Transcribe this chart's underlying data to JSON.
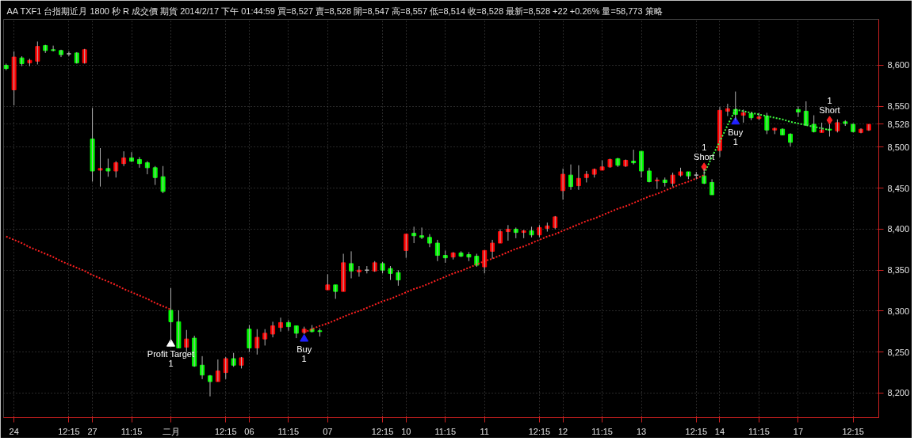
{
  "chart_data": {
    "type": "candlestick",
    "title": "AA  TXF1  台指期近月  1800 秒  R  成交價  期貨  2014/2/17 下午 01:44:59  買=8,527  賣=8,528  開=8,547  高=8,557  低=8,514  收=8,528  最新=8,528  +22  +0.26%  量=58,773  策略",
    "categories": [
      null,
      "24",
      null,
      null,
      null,
      null,
      null,
      null,
      "12:15",
      null,
      null,
      "27",
      null,
      null,
      null,
      null,
      "11:15",
      null,
      null,
      null,
      null,
      "二月",
      null,
      null,
      null,
      null,
      null,
      null,
      "12:15",
      null,
      null,
      "06",
      null,
      null,
      null,
      null,
      "11:15",
      null,
      null,
      null,
      null,
      "07",
      null,
      null,
      null,
      null,
      null,
      null,
      "12:15",
      null,
      null,
      "10",
      null,
      null,
      null,
      null,
      "11:15",
      null,
      null,
      null,
      null,
      "11",
      null,
      null,
      null,
      null,
      null,
      null,
      "12:15",
      null,
      null,
      "12",
      null,
      null,
      null,
      null,
      "11:15",
      null,
      null,
      null,
      null,
      "13",
      null,
      null,
      null,
      null,
      null,
      null,
      "12:15",
      null,
      null,
      "14",
      null,
      null,
      null,
      null,
      "11:15",
      null,
      null,
      null,
      null,
      "17",
      null,
      null,
      null,
      null,
      null,
      null,
      "12:15",
      null,
      null
    ],
    "ohlc": [
      [
        8600,
        8602,
        8594,
        8596
      ],
      [
        8570,
        8617,
        8551,
        8610
      ],
      [
        8609,
        8611,
        8599,
        8602
      ],
      [
        8603,
        8608,
        8599,
        8606
      ],
      [
        8605,
        8629,
        8601,
        8623
      ],
      [
        8624,
        8625,
        8615,
        8618
      ],
      [
        8619,
        8624,
        8617,
        8618
      ],
      [
        8618,
        8619,
        8610,
        8613
      ],
      [
        8614,
        8617,
        8611,
        8614
      ],
      [
        8615,
        8616,
        8602,
        8603
      ],
      [
        8603,
        8620,
        8602,
        8619
      ],
      [
        8510,
        8548,
        8458,
        8471
      ],
      [
        8472,
        8499,
        8452,
        8474
      ],
      [
        8474,
        8486,
        8464,
        8471
      ],
      [
        8471,
        8483,
        8463,
        8481
      ],
      [
        8480,
        8495,
        8477,
        8487
      ],
      [
        8487,
        8494,
        8482,
        8483
      ],
      [
        8485,
        8488,
        8475,
        8480
      ],
      [
        8481,
        8483,
        8467,
        8475
      ],
      [
        8475,
        8477,
        8454,
        8463
      ],
      [
        8464,
        8477,
        8444,
        8446
      ],
      [
        8301,
        8328,
        8262,
        8287
      ],
      [
        8287,
        8301,
        8255,
        8255
      ],
      [
        8256,
        8277,
        8250,
        8266
      ],
      [
        8267,
        8270,
        8232,
        8233
      ],
      [
        8234,
        8245,
        8217,
        8222
      ],
      [
        8221,
        8222,
        8196,
        8214
      ],
      [
        8214,
        8241,
        8214,
        8227
      ],
      [
        8225,
        8244,
        8217,
        8242
      ],
      [
        8242,
        8249,
        8232,
        8234
      ],
      [
        8234,
        8244,
        8230,
        8243
      ],
      [
        8278,
        8283,
        8250,
        8255
      ],
      [
        8255,
        8278,
        8247,
        8268
      ],
      [
        8266,
        8278,
        8258,
        8273
      ],
      [
        8272,
        8287,
        8268,
        8282
      ],
      [
        8280,
        8292,
        8275,
        8286
      ],
      [
        8286,
        8289,
        8276,
        8281
      ],
      [
        8282,
        8282,
        8267,
        8273
      ],
      [
        8274,
        8281,
        8272,
        8278
      ],
      [
        8278,
        8283,
        8274,
        8275
      ],
      [
        8276,
        8279,
        8269,
        8275
      ],
      [
        8326,
        8345,
        8326,
        8332
      ],
      [
        8332,
        8332,
        8315,
        8324
      ],
      [
        8324,
        8370,
        8324,
        8359
      ],
      [
        8358,
        8373,
        8340,
        8349
      ],
      [
        8348,
        8355,
        8342,
        8350
      ],
      [
        8350,
        8355,
        8346,
        8350
      ],
      [
        8349,
        8361,
        8348,
        8359
      ],
      [
        8358,
        8360,
        8346,
        8350
      ],
      [
        8352,
        8355,
        8338,
        8346
      ],
      [
        8347,
        8350,
        8331,
        8338
      ],
      [
        8374,
        8394,
        8365,
        8394
      ],
      [
        8395,
        8403,
        8383,
        8392
      ],
      [
        8392,
        8402,
        8388,
        8390
      ],
      [
        8390,
        8394,
        8378,
        8383
      ],
      [
        8383,
        8387,
        8361,
        8368
      ],
      [
        8368,
        8374,
        8359,
        8365
      ],
      [
        8366,
        8372,
        8363,
        8371
      ],
      [
        8371,
        8373,
        8366,
        8367
      ],
      [
        8369,
        8372,
        8361,
        8366
      ],
      [
        8367,
        8370,
        8354,
        8356
      ],
      [
        8354,
        8374,
        8346,
        8374
      ],
      [
        8373,
        8387,
        8364,
        8383
      ],
      [
        8383,
        8400,
        8383,
        8397
      ],
      [
        8397,
        8405,
        8386,
        8400
      ],
      [
        8400,
        8402,
        8389,
        8396
      ],
      [
        8396,
        8399,
        8389,
        8398
      ],
      [
        8398,
        8403,
        8390,
        8393
      ],
      [
        8393,
        8405,
        8390,
        8402
      ],
      [
        8401,
        8408,
        8397,
        8404
      ],
      [
        8402,
        8416,
        8400,
        8415
      ],
      [
        8447,
        8474,
        8436,
        8467
      ],
      [
        8466,
        8479,
        8448,
        8452
      ],
      [
        8453,
        8478,
        8448,
        8462
      ],
      [
        8463,
        8471,
        8457,
        8467
      ],
      [
        8467,
        8474,
        8463,
        8473
      ],
      [
        8472,
        8484,
        8472,
        8476
      ],
      [
        8476,
        8486,
        8475,
        8485
      ],
      [
        8486,
        8487,
        8476,
        8478
      ],
      [
        8477,
        8485,
        8476,
        8484
      ],
      [
        8483,
        8497,
        8479,
        8481
      ],
      [
        8495,
        8495,
        8463,
        8471
      ],
      [
        8471,
        8475,
        8457,
        8458
      ],
      [
        8459,
        8463,
        8449,
        8460
      ],
      [
        8460,
        8463,
        8452,
        8457
      ],
      [
        8456,
        8469,
        8452,
        8466
      ],
      [
        8466,
        8475,
        8464,
        8470
      ],
      [
        8470,
        8470,
        8461,
        8465
      ],
      [
        8466,
        8470,
        8461,
        8466
      ],
      [
        8465,
        8474,
        8455,
        8456
      ],
      [
        8457,
        8461,
        8442,
        8442
      ],
      [
        8496,
        8549,
        8488,
        8545
      ],
      [
        8544,
        8553,
        8538,
        8547
      ],
      [
        8546,
        8568,
        8533,
        8540
      ],
      [
        8539,
        8546,
        8530,
        8542
      ],
      [
        8541,
        8543,
        8533,
        8536
      ],
      [
        8535,
        8542,
        8533,
        8537
      ],
      [
        8538,
        8542,
        8516,
        8521
      ],
      [
        8521,
        8524,
        8516,
        8523
      ],
      [
        8522,
        8523,
        8515,
        8515
      ],
      [
        8516,
        8517,
        8501,
        8506
      ],
      [
        8546,
        8550,
        8537,
        8543
      ],
      [
        8544,
        8556,
        8526,
        8527
      ],
      [
        8528,
        8539,
        8518,
        8519
      ],
      [
        8518,
        8530,
        8518,
        8521
      ],
      [
        8522,
        8528,
        8513,
        8521
      ],
      [
        8520,
        8534,
        8518,
        8530
      ],
      [
        8531,
        8533,
        8526,
        8529
      ],
      [
        8528,
        8529,
        8518,
        8519
      ],
      [
        8518,
        8523,
        8517,
        8522
      ],
      [
        8521,
        8528,
        8520,
        8528
      ]
    ],
    "colors": [
      "#00ff00",
      "#ff0000",
      "#00ff00",
      "#ff0000",
      "#ff0000",
      "#00ff00",
      "#00ff00",
      "#00ff00",
      "#c0c0c0",
      "#00ff00",
      "#ff0000",
      "#00ff00",
      "#ff0000",
      "#00ff00",
      "#ff0000",
      "#ff0000",
      "#00ff00",
      "#00ff00",
      "#00ff00",
      "#00ff00",
      "#00ff00",
      "#00ff00",
      "#00ff00",
      "#ff0000",
      "#00ff00",
      "#00ff00",
      "#00ff00",
      "#ff0000",
      "#ff0000",
      "#00ff00",
      "#ff0000",
      "#00ff00",
      "#ff0000",
      "#ff0000",
      "#ff0000",
      "#ff0000",
      "#00ff00",
      "#00ff00",
      "#ff0000",
      "#00ff00",
      "#00ff00",
      "#ff0000",
      "#00ff00",
      "#ff0000",
      "#00ff00",
      "#ff0000",
      "#c0c0c0",
      "#ff0000",
      "#00ff00",
      "#00ff00",
      "#00ff00",
      "#ff0000",
      "#00ff00",
      "#00ff00",
      "#00ff00",
      "#00ff00",
      "#00ff00",
      "#ff0000",
      "#00ff00",
      "#00ff00",
      "#00ff00",
      "#ff0000",
      "#ff0000",
      "#ff0000",
      "#ff0000",
      "#00ff00",
      "#ff0000",
      "#00ff00",
      "#ff0000",
      "#ff0000",
      "#ff0000",
      "#ff0000",
      "#00ff00",
      "#ff0000",
      "#ff0000",
      "#ff0000",
      "#ff0000",
      "#ff0000",
      "#00ff00",
      "#ff0000",
      "#00ff00",
      "#00ff00",
      "#00ff00",
      "#ff0000",
      "#00ff00",
      "#ff0000",
      "#ff0000",
      "#00ff00",
      "#c0c0c0",
      "#00ff00",
      "#00ff00",
      "#ff0000",
      "#ff0000",
      "#00ff00",
      "#ff0000",
      "#00ff00",
      "#ff0000",
      "#00ff00",
      "#ff0000",
      "#00ff00",
      "#00ff00",
      "#00ff00",
      "#00ff00",
      "#00ff00",
      "#ff0000",
      "#00ff00",
      "#ff0000",
      "#00ff00",
      "#00ff00",
      "#ff0000",
      "#ff0000"
    ],
    "series": [
      {
        "type": "line",
        "color": "#ff2020",
        "line_style": "dotted",
        "values": [
          8391,
          8387,
          8383,
          8378,
          8374,
          8370,
          8366,
          8361,
          8357,
          8353,
          8349,
          8344,
          8340,
          8336,
          8332,
          8327,
          8323,
          8319,
          8315,
          8310,
          8306,
          8302,
          null,
          null,
          null,
          null,
          null,
          null,
          null,
          null,
          null,
          null,
          null,
          null,
          null,
          null,
          null,
          null,
          null,
          null,
          null,
          null,
          null,
          null,
          null,
          null,
          null,
          null,
          null,
          null,
          null,
          null,
          null,
          null,
          null,
          null,
          null,
          null,
          null,
          null,
          null,
          null,
          null,
          null,
          null,
          null,
          null,
          null,
          null,
          null,
          null,
          null,
          null,
          null,
          null,
          null,
          null,
          null,
          null,
          null,
          null,
          null,
          null,
          null,
          null,
          null,
          null,
          null,
          null,
          null,
          null,
          null,
          null,
          null,
          null,
          null,
          null,
          null,
          null,
          null,
          null,
          null,
          null,
          null,
          null,
          null,
          null,
          null,
          null,
          null,
          null
        ]
      },
      {
        "type": "line",
        "color": "#ff2020",
        "line_style": "dotted",
        "values": [
          null,
          null,
          null,
          null,
          null,
          null,
          null,
          null,
          null,
          null,
          null,
          null,
          null,
          null,
          null,
          null,
          null,
          null,
          null,
          null,
          null,
          null,
          null,
          null,
          null,
          null,
          null,
          null,
          null,
          null,
          null,
          null,
          null,
          null,
          null,
          null,
          null,
          null,
          8274,
          8278,
          8282,
          8285,
          8289,
          8293,
          8297,
          8300,
          8304,
          8308,
          8312,
          8315,
          8319,
          8323,
          8327,
          8330,
          8334,
          8338,
          8342,
          8346,
          8349,
          8353,
          8357,
          8361,
          8364,
          8368,
          8372,
          8376,
          8379,
          8383,
          8387,
          8391,
          8394,
          8398,
          8402,
          8406,
          8410,
          8413,
          8417,
          8421,
          8425,
          8428,
          8432,
          8436,
          8440,
          8443,
          8447,
          8451,
          8455,
          8458,
          8462,
          8466,
          null,
          null,
          null,
          null,
          null,
          null,
          null,
          null,
          null,
          null,
          null,
          null,
          null,
          null,
          null,
          null,
          null,
          null,
          null,
          null,
          null
        ]
      },
      {
        "type": "line",
        "color": "#40ff40",
        "line_style": "dotted",
        "values": [
          null,
          null,
          null,
          null,
          null,
          null,
          null,
          null,
          null,
          null,
          null,
          null,
          null,
          null,
          null,
          null,
          null,
          null,
          null,
          null,
          null,
          null,
          null,
          null,
          null,
          null,
          null,
          null,
          null,
          null,
          null,
          null,
          null,
          null,
          null,
          null,
          null,
          null,
          null,
          null,
          null,
          null,
          null,
          null,
          null,
          null,
          null,
          null,
          null,
          null,
          null,
          null,
          null,
          null,
          null,
          null,
          null,
          null,
          null,
          null,
          null,
          null,
          null,
          null,
          null,
          null,
          null,
          null,
          null,
          null,
          null,
          null,
          null,
          null,
          null,
          null,
          null,
          null,
          null,
          null,
          null,
          null,
          null,
          null,
          null,
          null,
          null,
          null,
          null,
          8468,
          8488,
          8507,
          8527,
          8546,
          null,
          null,
          null,
          null,
          null,
          null,
          null,
          null,
          null,
          null,
          null,
          null,
          null,
          null,
          null,
          null,
          null
        ]
      },
      {
        "type": "line",
        "color": "#40ff40",
        "line_style": "dotted",
        "values": [
          null,
          null,
          null,
          null,
          null,
          null,
          null,
          null,
          null,
          null,
          null,
          null,
          null,
          null,
          null,
          null,
          null,
          null,
          null,
          null,
          null,
          null,
          null,
          null,
          null,
          null,
          null,
          null,
          null,
          null,
          null,
          null,
          null,
          null,
          null,
          null,
          null,
          null,
          null,
          null,
          null,
          null,
          null,
          null,
          null,
          null,
          null,
          null,
          null,
          null,
          null,
          null,
          null,
          null,
          null,
          null,
          null,
          null,
          null,
          null,
          null,
          null,
          null,
          null,
          null,
          null,
          null,
          null,
          null,
          null,
          null,
          null,
          null,
          null,
          null,
          null,
          null,
          null,
          null,
          null,
          null,
          null,
          null,
          null,
          null,
          null,
          null,
          null,
          null,
          null,
          null,
          null,
          null,
          8546,
          8544,
          8542,
          8540,
          8538,
          8536,
          8534,
          8531,
          8529,
          8527,
          8525,
          8523,
          8521,
          null,
          null,
          null,
          null,
          null
        ]
      },
      {
        "type": "scatter",
        "name": "Profit Target",
        "color": "#ffffff",
        "marker": "triangle",
        "values": [
          null,
          null,
          null,
          null,
          null,
          null,
          null,
          null,
          null,
          null,
          null,
          null,
          null,
          null,
          null,
          null,
          null,
          null,
          null,
          null,
          null,
          8260,
          null,
          null,
          null,
          null,
          null,
          null,
          null,
          null,
          null,
          null,
          null,
          null,
          null,
          null,
          null,
          null,
          null,
          null,
          null,
          null,
          null,
          null,
          null,
          null,
          null,
          null,
          null,
          null,
          null,
          null,
          null,
          null,
          null,
          null,
          null,
          null,
          null,
          null,
          null,
          null,
          null,
          null,
          null,
          null,
          null,
          null,
          null,
          null,
          null,
          null,
          null,
          null,
          null,
          null,
          null,
          null,
          null,
          null,
          null,
          null,
          null,
          null,
          null,
          null,
          null,
          null,
          null,
          null,
          null,
          null,
          null,
          null,
          null,
          null,
          null,
          null,
          null,
          null,
          null,
          null,
          null,
          null,
          null,
          null,
          null,
          null,
          null,
          null,
          null
        ]
      },
      {
        "type": "scatter",
        "name": "Buy",
        "color": "#2020ff",
        "marker": "triangle",
        "values": [
          null,
          null,
          null,
          null,
          null,
          null,
          null,
          null,
          null,
          null,
          null,
          null,
          null,
          null,
          null,
          null,
          null,
          null,
          null,
          null,
          null,
          null,
          null,
          null,
          null,
          null,
          null,
          null,
          null,
          null,
          null,
          null,
          null,
          null,
          null,
          null,
          null,
          null,
          8266,
          null,
          null,
          null,
          null,
          null,
          null,
          null,
          null,
          null,
          null,
          null,
          null,
          null,
          null,
          null,
          null,
          null,
          null,
          null,
          null,
          null,
          null,
          null,
          null,
          null,
          null,
          null,
          null,
          null,
          null,
          null,
          null,
          null,
          null,
          null,
          null,
          null,
          null,
          null,
          null,
          null,
          null,
          null,
          null,
          null,
          null,
          null,
          null,
          null,
          null,
          null,
          null,
          null,
          null,
          8531,
          null,
          null,
          null,
          null,
          null,
          null,
          null,
          null,
          null,
          null,
          null,
          null,
          null,
          null,
          null,
          null,
          null
        ]
      },
      {
        "type": "scatter",
        "name": "Short",
        "color": "#ff2020",
        "marker": "diamond",
        "values": [
          null,
          null,
          null,
          null,
          null,
          null,
          null,
          null,
          null,
          null,
          null,
          null,
          null,
          null,
          null,
          null,
          null,
          null,
          null,
          null,
          null,
          null,
          null,
          null,
          null,
          null,
          null,
          null,
          null,
          null,
          null,
          null,
          null,
          null,
          null,
          null,
          null,
          null,
          null,
          null,
          null,
          null,
          null,
          null,
          null,
          null,
          null,
          null,
          null,
          null,
          null,
          null,
          null,
          null,
          null,
          null,
          null,
          null,
          null,
          null,
          null,
          null,
          null,
          null,
          null,
          null,
          null,
          null,
          null,
          null,
          null,
          null,
          null,
          null,
          null,
          null,
          null,
          null,
          null,
          null,
          null,
          null,
          null,
          null,
          null,
          null,
          null,
          null,
          null,
          8476,
          null,
          null,
          null,
          null,
          null,
          null,
          null,
          null,
          null,
          null,
          null,
          null,
          null,
          null,
          null,
          8533,
          null,
          null,
          null,
          null,
          null
        ]
      }
    ],
    "annotations": [
      "1",
      "1",
      "1",
      "1",
      "1"
    ],
    "ylim": [
      8170,
      8656
    ],
    "yticks": [
      {
        "value": 8200,
        "label": "8,200"
      },
      {
        "value": 8250,
        "label": "8,250"
      },
      {
        "value": 8300,
        "label": "8,300"
      },
      {
        "value": 8350,
        "label": "8,350"
      },
      {
        "value": 8400,
        "label": "8,400"
      },
      {
        "value": 8450,
        "label": "8,450"
      },
      {
        "value": 8500,
        "label": "8,500"
      },
      {
        "value": 8528,
        "label": "8,528"
      },
      {
        "value": 8550,
        "label": "8,550"
      },
      {
        "value": 8600,
        "label": "8,600"
      }
    ],
    "grid": true
  }
}
